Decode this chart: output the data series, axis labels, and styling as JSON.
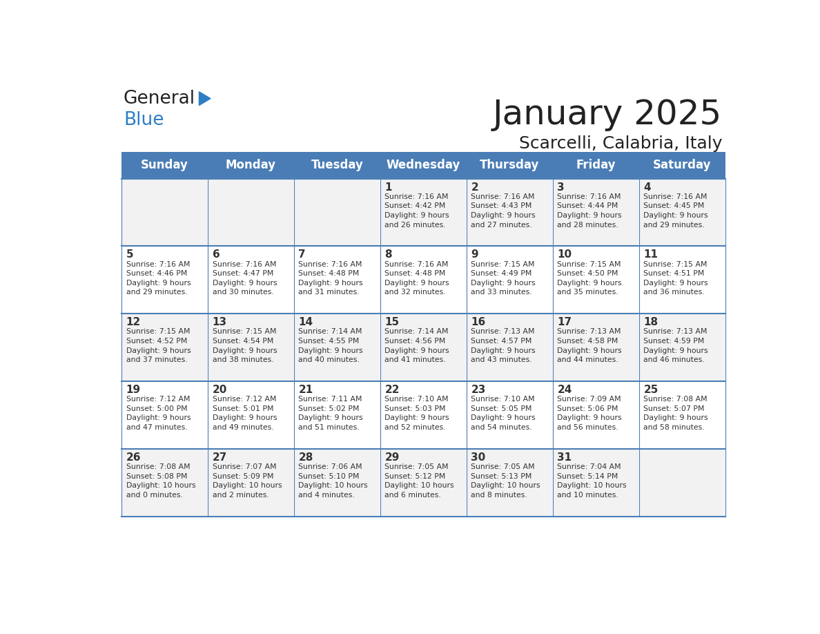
{
  "title": "January 2025",
  "subtitle": "Scarcelli, Calabria, Italy",
  "days_of_week": [
    "Sunday",
    "Monday",
    "Tuesday",
    "Wednesday",
    "Thursday",
    "Friday",
    "Saturday"
  ],
  "header_bg": "#4A7DB5",
  "header_text": "#FFFFFF",
  "row_bg_even": "#F2F2F2",
  "row_bg_odd": "#FFFFFF",
  "day_num_color": "#333333",
  "text_color": "#333333",
  "title_color": "#222222",
  "logo_general_color": "#222222",
  "logo_blue_color": "#2E7EC4",
  "weeks": [
    {
      "days": [
        {
          "date": "",
          "info": ""
        },
        {
          "date": "",
          "info": ""
        },
        {
          "date": "",
          "info": ""
        },
        {
          "date": "1",
          "info": "Sunrise: 7:16 AM\nSunset: 4:42 PM\nDaylight: 9 hours\nand 26 minutes."
        },
        {
          "date": "2",
          "info": "Sunrise: 7:16 AM\nSunset: 4:43 PM\nDaylight: 9 hours\nand 27 minutes."
        },
        {
          "date": "3",
          "info": "Sunrise: 7:16 AM\nSunset: 4:44 PM\nDaylight: 9 hours\nand 28 minutes."
        },
        {
          "date": "4",
          "info": "Sunrise: 7:16 AM\nSunset: 4:45 PM\nDaylight: 9 hours\nand 29 minutes."
        }
      ]
    },
    {
      "days": [
        {
          "date": "5",
          "info": "Sunrise: 7:16 AM\nSunset: 4:46 PM\nDaylight: 9 hours\nand 29 minutes."
        },
        {
          "date": "6",
          "info": "Sunrise: 7:16 AM\nSunset: 4:47 PM\nDaylight: 9 hours\nand 30 minutes."
        },
        {
          "date": "7",
          "info": "Sunrise: 7:16 AM\nSunset: 4:48 PM\nDaylight: 9 hours\nand 31 minutes."
        },
        {
          "date": "8",
          "info": "Sunrise: 7:16 AM\nSunset: 4:48 PM\nDaylight: 9 hours\nand 32 minutes."
        },
        {
          "date": "9",
          "info": "Sunrise: 7:15 AM\nSunset: 4:49 PM\nDaylight: 9 hours\nand 33 minutes."
        },
        {
          "date": "10",
          "info": "Sunrise: 7:15 AM\nSunset: 4:50 PM\nDaylight: 9 hours\nand 35 minutes."
        },
        {
          "date": "11",
          "info": "Sunrise: 7:15 AM\nSunset: 4:51 PM\nDaylight: 9 hours\nand 36 minutes."
        }
      ]
    },
    {
      "days": [
        {
          "date": "12",
          "info": "Sunrise: 7:15 AM\nSunset: 4:52 PM\nDaylight: 9 hours\nand 37 minutes."
        },
        {
          "date": "13",
          "info": "Sunrise: 7:15 AM\nSunset: 4:54 PM\nDaylight: 9 hours\nand 38 minutes."
        },
        {
          "date": "14",
          "info": "Sunrise: 7:14 AM\nSunset: 4:55 PM\nDaylight: 9 hours\nand 40 minutes."
        },
        {
          "date": "15",
          "info": "Sunrise: 7:14 AM\nSunset: 4:56 PM\nDaylight: 9 hours\nand 41 minutes."
        },
        {
          "date": "16",
          "info": "Sunrise: 7:13 AM\nSunset: 4:57 PM\nDaylight: 9 hours\nand 43 minutes."
        },
        {
          "date": "17",
          "info": "Sunrise: 7:13 AM\nSunset: 4:58 PM\nDaylight: 9 hours\nand 44 minutes."
        },
        {
          "date": "18",
          "info": "Sunrise: 7:13 AM\nSunset: 4:59 PM\nDaylight: 9 hours\nand 46 minutes."
        }
      ]
    },
    {
      "days": [
        {
          "date": "19",
          "info": "Sunrise: 7:12 AM\nSunset: 5:00 PM\nDaylight: 9 hours\nand 47 minutes."
        },
        {
          "date": "20",
          "info": "Sunrise: 7:12 AM\nSunset: 5:01 PM\nDaylight: 9 hours\nand 49 minutes."
        },
        {
          "date": "21",
          "info": "Sunrise: 7:11 AM\nSunset: 5:02 PM\nDaylight: 9 hours\nand 51 minutes."
        },
        {
          "date": "22",
          "info": "Sunrise: 7:10 AM\nSunset: 5:03 PM\nDaylight: 9 hours\nand 52 minutes."
        },
        {
          "date": "23",
          "info": "Sunrise: 7:10 AM\nSunset: 5:05 PM\nDaylight: 9 hours\nand 54 minutes."
        },
        {
          "date": "24",
          "info": "Sunrise: 7:09 AM\nSunset: 5:06 PM\nDaylight: 9 hours\nand 56 minutes."
        },
        {
          "date": "25",
          "info": "Sunrise: 7:08 AM\nSunset: 5:07 PM\nDaylight: 9 hours\nand 58 minutes."
        }
      ]
    },
    {
      "days": [
        {
          "date": "26",
          "info": "Sunrise: 7:08 AM\nSunset: 5:08 PM\nDaylight: 10 hours\nand 0 minutes."
        },
        {
          "date": "27",
          "info": "Sunrise: 7:07 AM\nSunset: 5:09 PM\nDaylight: 10 hours\nand 2 minutes."
        },
        {
          "date": "28",
          "info": "Sunrise: 7:06 AM\nSunset: 5:10 PM\nDaylight: 10 hours\nand 4 minutes."
        },
        {
          "date": "29",
          "info": "Sunrise: 7:05 AM\nSunset: 5:12 PM\nDaylight: 10 hours\nand 6 minutes."
        },
        {
          "date": "30",
          "info": "Sunrise: 7:05 AM\nSunset: 5:13 PM\nDaylight: 10 hours\nand 8 minutes."
        },
        {
          "date": "31",
          "info": "Sunrise: 7:04 AM\nSunset: 5:14 PM\nDaylight: 10 hours\nand 10 minutes."
        },
        {
          "date": "",
          "info": ""
        }
      ]
    }
  ]
}
